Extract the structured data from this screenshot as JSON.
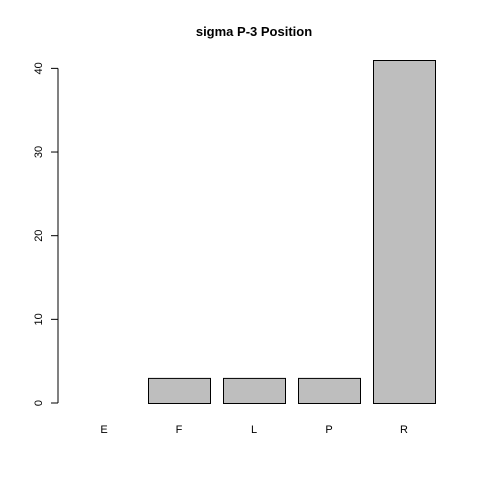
{
  "chart_data": {
    "type": "bar",
    "title": "sigma P-3 Position",
    "xlabel": "",
    "ylabel": "",
    "categories": [
      "E",
      "F",
      "L",
      "P",
      "R"
    ],
    "values": [
      0,
      3,
      3,
      3,
      41
    ],
    "ylim": [
      0,
      41
    ],
    "yticks": [
      0,
      10,
      20,
      30,
      40
    ],
    "bar_color": "#bebebe",
    "bar_border_color": "#000000",
    "grid": false,
    "legend": "none"
  }
}
